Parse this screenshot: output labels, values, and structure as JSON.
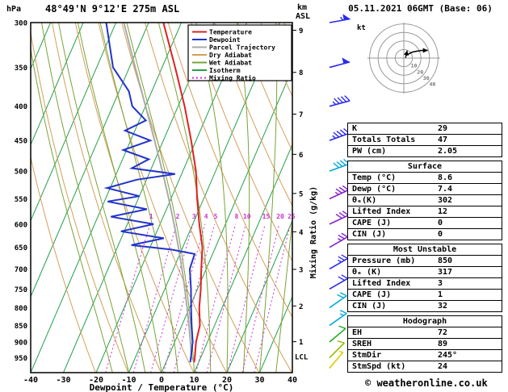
{
  "header": {
    "pressure_unit": "hPa",
    "title": "48°49'N 9°12'E 275m ASL",
    "date": "05.11.2021 06GMT (Base: 06)",
    "km_label": "km",
    "asl_label": "ASL"
  },
  "axes": {
    "pressure_ticks": [
      300,
      350,
      400,
      450,
      500,
      550,
      600,
      650,
      700,
      750,
      800,
      850,
      900,
      950
    ],
    "km_ticks": [
      1,
      2,
      3,
      4,
      5,
      6,
      7,
      8,
      9
    ],
    "temp_ticks": [
      -40,
      -30,
      -20,
      -10,
      0,
      10,
      20,
      30,
      40
    ],
    "x_title": "Dewpoint / Temperature (°C)",
    "mixing_ratio_axis_title": "Mixing Ratio (g/kg)",
    "mixing_ratio_values": [
      1,
      2,
      3,
      4,
      5,
      8,
      10,
      15,
      20,
      25
    ],
    "lcl_label": "LCL"
  },
  "colors": {
    "temperature": "#dd2222",
    "dewpoint": "#2233cc",
    "parcel": "#aaaaaa",
    "dry_adiabat": "#d2a05a",
    "wet_adiabat": "#7aa337",
    "isotherm": "#22a04a",
    "mixing_ratio": "#cc33cc",
    "plot_border": "#000000"
  },
  "legend": {
    "items": [
      {
        "label": "Temperature",
        "color": "#dd2222",
        "dash": ""
      },
      {
        "label": "Dewpoint",
        "color": "#2233cc",
        "dash": ""
      },
      {
        "label": "Parcel Trajectory",
        "color": "#aaaaaa",
        "dash": ""
      },
      {
        "label": "Dry Adiabat",
        "color": "#d2a05a",
        "dash": ""
      },
      {
        "label": "Wet Adiabat",
        "color": "#7aa337",
        "dash": ""
      },
      {
        "label": "Isotherm",
        "color": "#22a04a",
        "dash": ""
      },
      {
        "label": "Mixing Ratio",
        "color": "#cc33cc",
        "dash": "2,3"
      }
    ]
  },
  "chart_data": {
    "type": "skewt-log-p sounding",
    "title": "48°49'N 9°12'E 275m ASL",
    "x_label": "Dewpoint / Temperature (°C)",
    "temp_axis_range": [
      -40,
      40
    ],
    "pressure_axis_range": [
      300,
      1000
    ],
    "temperature_profile": [
      [
        965,
        8.6
      ],
      [
        950,
        8.2
      ],
      [
        900,
        6.5
      ],
      [
        850,
        5.5
      ],
      [
        800,
        3
      ],
      [
        750,
        1
      ],
      [
        700,
        -1.5
      ],
      [
        650,
        -4
      ],
      [
        600,
        -8
      ],
      [
        550,
        -12
      ],
      [
        500,
        -16
      ],
      [
        450,
        -21.5
      ],
      [
        400,
        -28
      ],
      [
        350,
        -36
      ],
      [
        300,
        -45.5
      ]
    ],
    "dewpoint_profile": [
      [
        965,
        7.4
      ],
      [
        950,
        7.0
      ],
      [
        900,
        5.5
      ],
      [
        850,
        3.0
      ],
      [
        800,
        0.5
      ],
      [
        750,
        -2.0
      ],
      [
        700,
        -5.0
      ],
      [
        665,
        -5.5
      ],
      [
        655,
        -13
      ],
      [
        645,
        -26
      ],
      [
        630,
        -17
      ],
      [
        615,
        -31
      ],
      [
        600,
        -22
      ],
      [
        585,
        -36
      ],
      [
        570,
        -26
      ],
      [
        555,
        -39
      ],
      [
        545,
        -30
      ],
      [
        530,
        -41
      ],
      [
        515,
        -33
      ],
      [
        505,
        -22
      ],
      [
        495,
        -36
      ],
      [
        480,
        -32
      ],
      [
        465,
        -41
      ],
      [
        450,
        -34
      ],
      [
        435,
        -43
      ],
      [
        420,
        -38
      ],
      [
        400,
        -44
      ],
      [
        380,
        -47
      ],
      [
        350,
        -55
      ],
      [
        300,
        -63
      ]
    ],
    "parcel": {
      "p": 965,
      "temp": 8.6,
      "dewp": 7.4
    },
    "winds": [
      {
        "p": 300,
        "dir": 260,
        "spd": 55,
        "color": "#2a2aee"
      },
      {
        "p": 350,
        "dir": 255,
        "spd": 50,
        "color": "#2a2aee"
      },
      {
        "p": 400,
        "dir": 255,
        "spd": 45,
        "color": "#2a2aee"
      },
      {
        "p": 450,
        "dir": 250,
        "spd": 45,
        "color": "#2a2aee"
      },
      {
        "p": 500,
        "dir": 250,
        "spd": 40,
        "color": "#00aadd"
      },
      {
        "p": 550,
        "dir": 245,
        "spd": 35,
        "color": "#8822cc"
      },
      {
        "p": 600,
        "dir": 245,
        "spd": 30,
        "color": "#8822cc"
      },
      {
        "p": 650,
        "dir": 240,
        "spd": 25,
        "color": "#8822cc"
      },
      {
        "p": 700,
        "dir": 240,
        "spd": 25,
        "color": "#2a2aee"
      },
      {
        "p": 750,
        "dir": 240,
        "spd": 20,
        "color": "#2a2aee"
      },
      {
        "p": 800,
        "dir": 235,
        "spd": 20,
        "color": "#00aadd"
      },
      {
        "p": 850,
        "dir": 235,
        "spd": 15,
        "color": "#00aadd"
      },
      {
        "p": 900,
        "dir": 230,
        "spd": 10,
        "color": "#22aa22"
      },
      {
        "p": 950,
        "dir": 225,
        "spd": 10,
        "color": "#99bb00"
      },
      {
        "p": 985,
        "dir": 220,
        "spd": 5,
        "color": "#ddcc00"
      }
    ]
  },
  "hodograph": {
    "unit": "kt",
    "rings_kt": [
      10,
      20,
      30,
      40
    ],
    "trace": [
      [
        2,
        3
      ],
      [
        6,
        5
      ],
      [
        10,
        7
      ],
      [
        15,
        8
      ],
      [
        21,
        9
      ],
      [
        28,
        9
      ]
    ],
    "extra_arrow": [
      [
        2,
        0
      ],
      [
        4,
        9
      ]
    ]
  },
  "table": {
    "sections": [
      {
        "rows": [
          [
            "K",
            "29"
          ],
          [
            "Totals Totals",
            "47"
          ],
          [
            "PW (cm)",
            "2.05"
          ]
        ]
      },
      {
        "header": "Surface",
        "rows": [
          [
            "Temp (°C)",
            "8.6"
          ],
          [
            "Dewp (°C)",
            "7.4"
          ],
          [
            "θₑ(K)",
            "302"
          ],
          [
            "Lifted Index",
            "12"
          ],
          [
            "CAPE (J)",
            "0"
          ],
          [
            "CIN (J)",
            "0"
          ]
        ]
      },
      {
        "header": "Most Unstable",
        "rows": [
          [
            "Pressure (mb)",
            "850"
          ],
          [
            "θₑ (K)",
            "317"
          ],
          [
            "Lifted Index",
            "3"
          ],
          [
            "CAPE (J)",
            "1"
          ],
          [
            "CIN (J)",
            "32"
          ]
        ]
      },
      {
        "header": "Hodograph",
        "rows": [
          [
            "EH",
            "72"
          ],
          [
            "SREH",
            "89"
          ],
          [
            "StmDir",
            "245°"
          ],
          [
            "StmSpd (kt)",
            "24"
          ]
        ]
      }
    ]
  },
  "footer": {
    "copyright": "© weatheronline.co.uk"
  }
}
